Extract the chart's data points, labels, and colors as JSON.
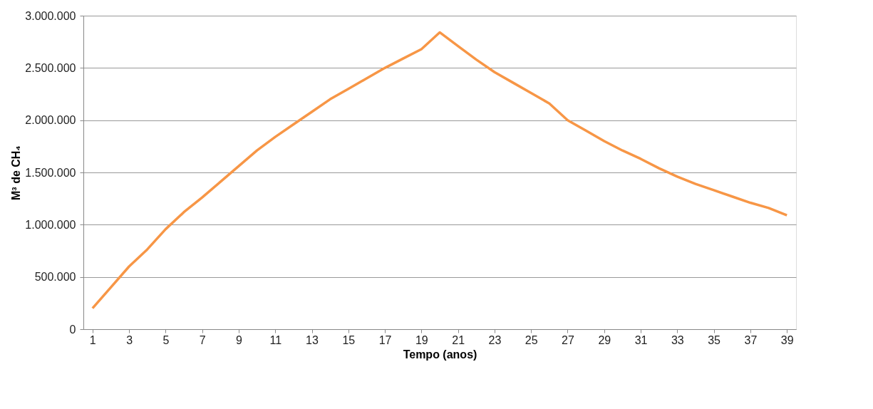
{
  "chart_data": {
    "type": "line",
    "xlabel": "Tempo (anos)",
    "ylabel": "M³ de CH₄",
    "x": [
      1,
      2,
      3,
      4,
      5,
      6,
      7,
      8,
      9,
      10,
      11,
      12,
      13,
      14,
      15,
      16,
      17,
      18,
      19,
      20,
      21,
      22,
      23,
      24,
      25,
      26,
      27,
      28,
      29,
      30,
      31,
      32,
      33,
      34,
      35,
      36,
      37,
      38,
      39
    ],
    "series": [
      {
        "color": "#f79646",
        "values": [
          200000,
          400000,
          600000,
          764000,
          957000,
          1120000,
          1260000,
          1410000,
          1560000,
          1710000,
          1840000,
          1960000,
          2080000,
          2200000,
          2300000,
          2400000,
          2500000,
          2590000,
          2680000,
          2840000,
          2710000,
          2580000,
          2460000,
          2360000,
          2260000,
          2160000,
          2000000,
          1900000,
          1800000,
          1710000,
          1630000,
          1540000,
          1460000,
          1390000,
          1330000,
          1270000,
          1210000,
          1160000,
          1090000
        ]
      }
    ],
    "xlim": [
      0.5,
      39.5
    ],
    "xticks": [
      1,
      3,
      5,
      7,
      9,
      11,
      13,
      15,
      17,
      19,
      21,
      23,
      25,
      27,
      29,
      31,
      33,
      35,
      37,
      39
    ],
    "ylim": [
      0,
      3000000
    ],
    "yticks": [
      0,
      {
        "value": 500000,
        "label": "500.000"
      },
      {
        "value": 1000000,
        "label": "1.000.000"
      },
      {
        "value": 1500000,
        "label": "1.500.000"
      },
      {
        "value": 2000000,
        "label": "2.000.000"
      },
      {
        "value": 2500000,
        "label": "2.500.000"
      },
      {
        "value": 3000000,
        "label": "3.000.000"
      }
    ],
    "grid": "y",
    "marker": "none",
    "line_style": "solid"
  }
}
